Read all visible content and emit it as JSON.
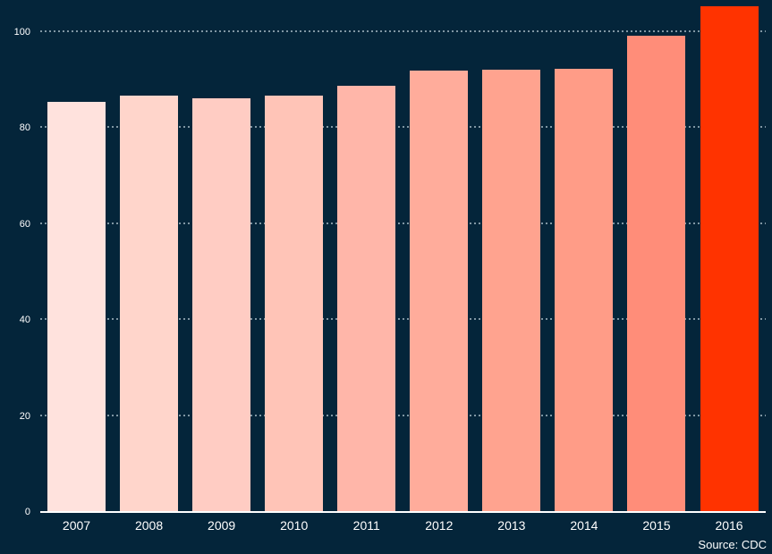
{
  "source_note": "Source: CDC",
  "colors": {
    "background": "#04253a",
    "axis_line": "#ffffff",
    "gridline": "#8096a3",
    "tick_text": "#ffffff"
  },
  "chart_data": {
    "type": "bar",
    "categories": [
      "2007",
      "2008",
      "2009",
      "2010",
      "2011",
      "2012",
      "2013",
      "2014",
      "2015",
      "2016"
    ],
    "values": [
      85.3,
      86.6,
      86.0,
      86.5,
      88.7,
      91.8,
      91.9,
      92.2,
      99.0,
      105.1
    ],
    "bar_colors": [
      "#ffe2dd",
      "#ffd5cb",
      "#ffccc3",
      "#ffc4b7",
      "#ffb6a9",
      "#ffac9b",
      "#ffa38f",
      "#ff9c87",
      "#ff8d79",
      "#ff3300"
    ],
    "title": "",
    "subtitle": "",
    "xlabel": "",
    "ylabel": "",
    "ylim": [
      0,
      106.5
    ],
    "yticks": [
      0,
      20,
      40,
      60,
      80,
      100
    ],
    "grid": "horizontal-dotted",
    "legend_position": "none",
    "annotations": [
      "Source: CDC"
    ]
  }
}
